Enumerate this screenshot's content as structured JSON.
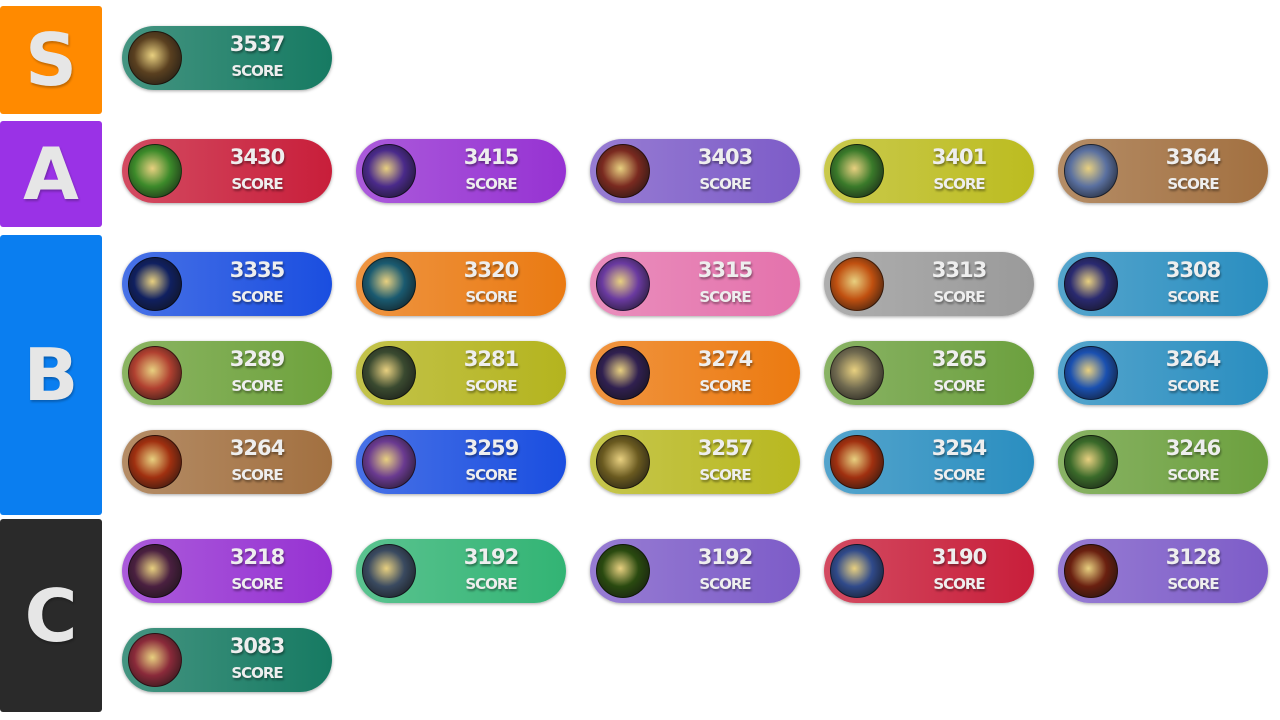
{
  "score_label": "SCORE",
  "tiers": [
    {
      "label": "S",
      "color": "#ff8a00",
      "rows": [
        [
          {
            "score": "3537",
            "color": "#167a62",
            "icon": "#5a4020"
          }
        ]
      ]
    },
    {
      "label": "A",
      "color": "#9a32e6",
      "rows": [
        [
          {
            "score": "3430",
            "color": "#c81e3a",
            "icon": "#3c8a2a"
          },
          {
            "score": "3415",
            "color": "#9632d2",
            "icon": "#4a2a8a"
          },
          {
            "score": "3403",
            "color": "#7d5cc8",
            "icon": "#7a2a20"
          },
          {
            "score": "3401",
            "color": "#bcbc20",
            "icon": "#3a7a2a"
          },
          {
            "score": "3364",
            "color": "#a27040",
            "icon": "#5a70a0"
          }
        ]
      ]
    },
    {
      "label": "B",
      "color": "#0a7ef0",
      "rows": [
        [
          {
            "score": "3335",
            "color": "#1a4ee0",
            "icon": "#102060"
          },
          {
            "score": "3320",
            "color": "#ea7a12",
            "icon": "#1a5a70"
          },
          {
            "score": "3315",
            "color": "#e472ac",
            "icon": "#6a3aa0"
          },
          {
            "score": "3313",
            "color": "#9a9a9a",
            "icon": "#c05010"
          },
          {
            "score": "3308",
            "color": "#2a8ec0",
            "icon": "#2a2a70"
          }
        ],
        [
          {
            "score": "3289",
            "color": "#6ea23c",
            "icon": "#b04030"
          },
          {
            "score": "3281",
            "color": "#b4b41e",
            "icon": "#3a4a30"
          },
          {
            "score": "3274",
            "color": "#ec7a10",
            "icon": "#302050"
          },
          {
            "score": "3265",
            "color": "#6ca03e",
            "icon": "#706a50"
          },
          {
            "score": "3264",
            "color": "#2a8ec0",
            "icon": "#1a50b0"
          }
        ],
        [
          {
            "score": "3264",
            "color": "#a27040",
            "icon": "#a03010"
          },
          {
            "score": "3259",
            "color": "#1a4ee0",
            "icon": "#6a3a90"
          },
          {
            "score": "3257",
            "color": "#b8b820",
            "icon": "#6a5a20"
          },
          {
            "score": "3254",
            "color": "#2a8ec0",
            "icon": "#a03010"
          },
          {
            "score": "3246",
            "color": "#6ca03e",
            "icon": "#3a6a2a"
          }
        ]
      ]
    },
    {
      "label": "C",
      "color": "#2a2a2a",
      "rows": [
        [
          {
            "score": "3218",
            "color": "#9632d2",
            "icon": "#4a2040"
          },
          {
            "score": "3192",
            "color": "#32b474",
            "icon": "#3a4a60"
          },
          {
            "score": "3192",
            "color": "#7d5cc8",
            "icon": "#2a4a10"
          },
          {
            "score": "3190",
            "color": "#c81e3a",
            "icon": "#304a8a"
          },
          {
            "score": "3128",
            "color": "#7d5cc8",
            "icon": "#6a2010"
          }
        ],
        [
          {
            "score": "3083",
            "color": "#167a62",
            "icon": "#8a2a3a"
          }
        ]
      ]
    }
  ]
}
